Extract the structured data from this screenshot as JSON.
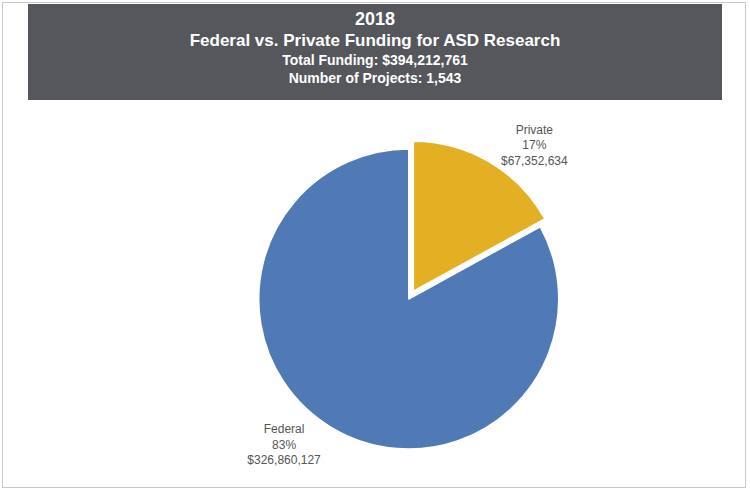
{
  "chart_data": {
    "type": "pie",
    "title": "2018",
    "subtitle": "Federal vs. Private Funding for ASD Research",
    "annotations": [
      "Total Funding: $394,212,761",
      "Number of Projects: 1,543"
    ],
    "categories": [
      "Private",
      "Federal"
    ],
    "values": [
      17,
      83
    ],
    "value_labels": [
      "17%",
      "83%"
    ],
    "amount_labels": [
      "$67,352,634",
      "$326,860,127"
    ],
    "colors": [
      "#e2b022",
      "#4f7ab5"
    ],
    "data_labels": true
  }
}
